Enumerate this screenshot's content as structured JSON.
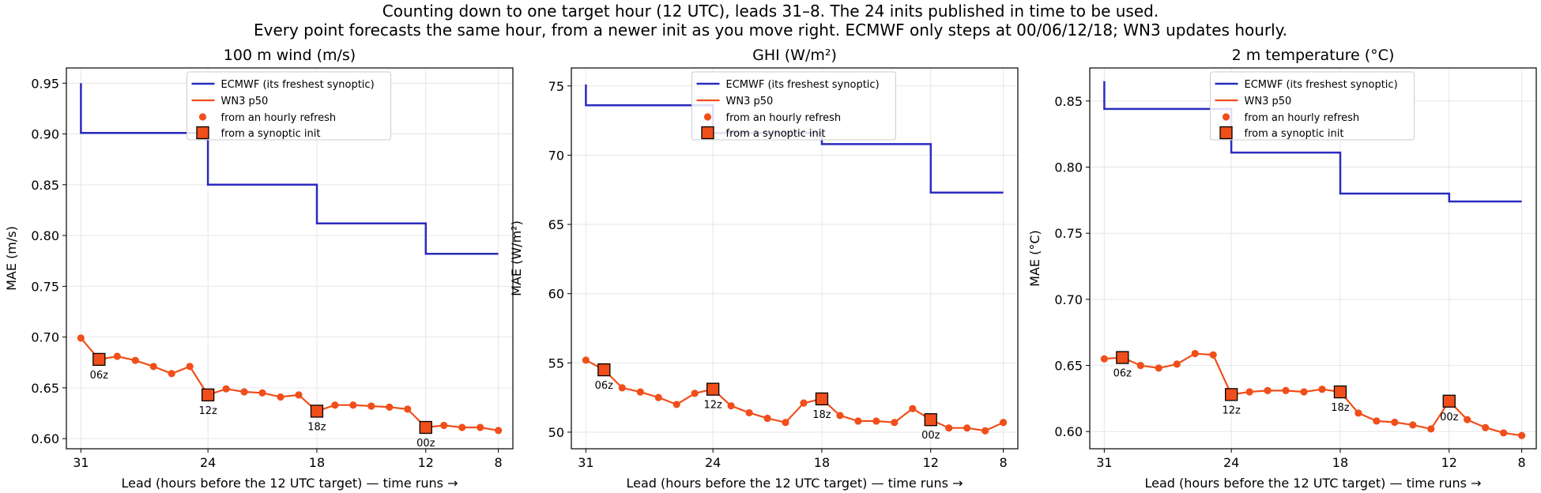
{
  "figure": {
    "title_line1": "Counting down to one target hour (12 UTC), leads 31–8. The 24 inits published in time to be used.",
    "title_line2": "Every point forecasts the same hour, from a newer init as you move right. ECMWF only steps at 00/06/12/18; WN3 updates hourly."
  },
  "legend": {
    "ecmwf": "ECMWF (its freshest synoptic)",
    "wn3": "WN3 p50",
    "hourly": "from an hourly refresh",
    "synoptic": "from a synoptic init"
  },
  "colors": {
    "ecmwf": "#2b2bbf",
    "wn3": "#f04e1a",
    "grid": "#e6e6e6"
  },
  "chart_data": [
    {
      "type": "line",
      "title": "100 m wind (m/s)",
      "xlabel": "Lead (hours before the 12 UTC target) — time runs →",
      "ylabel": "MAE (m/s)",
      "xlim": [
        31.8,
        7.2
      ],
      "ylim": [
        0.59,
        0.965
      ],
      "xticks": [
        31,
        24,
        18,
        12,
        8
      ],
      "yticks": [
        0.6,
        0.65,
        0.7,
        0.75,
        0.8,
        0.85,
        0.9,
        0.95
      ],
      "ytick_labels": [
        "0.60",
        "0.65",
        "0.70",
        "0.75",
        "0.80",
        "0.85",
        "0.90",
        "0.95"
      ],
      "grid": true,
      "legend_position": "upper center",
      "series": [
        {
          "name": "ECMWF (its freshest synoptic)",
          "style": "step",
          "steps": [
            [
              31,
              0.95
            ],
            [
              31,
              0.901
            ],
            [
              24,
              0.901
            ],
            [
              24,
              0.85
            ],
            [
              18,
              0.85
            ],
            [
              18,
              0.812
            ],
            [
              12,
              0.812
            ],
            [
              12,
              0.782
            ],
            [
              8,
              0.782
            ]
          ]
        },
        {
          "name": "WN3 p50",
          "x": [
            31,
            30,
            29,
            28,
            27,
            26,
            25,
            24,
            23,
            22,
            21,
            20,
            19,
            18,
            17,
            16,
            15,
            14,
            13,
            12,
            11,
            10,
            9,
            8
          ],
          "y": [
            0.699,
            0.678,
            0.681,
            0.677,
            0.671,
            0.664,
            0.671,
            0.643,
            0.649,
            0.646,
            0.645,
            0.641,
            0.643,
            0.627,
            0.633,
            0.633,
            0.632,
            0.631,
            0.629,
            0.611,
            0.613,
            0.611,
            0.611,
            0.608
          ],
          "synoptic": [
            {
              "x": 30,
              "label": "06z"
            },
            {
              "x": 24,
              "label": "12z"
            },
            {
              "x": 18,
              "label": "18z"
            },
            {
              "x": 12,
              "label": "00z"
            }
          ]
        }
      ]
    },
    {
      "type": "line",
      "title": "GHI (W/m²)",
      "xlabel": "Lead (hours before the 12 UTC target) — time runs →",
      "ylabel": "MAE (W/m²)",
      "xlim": [
        31.8,
        7.2
      ],
      "ylim": [
        48.8,
        76.3
      ],
      "xticks": [
        31,
        24,
        18,
        12,
        8
      ],
      "yticks": [
        50,
        55,
        60,
        65,
        70,
        75
      ],
      "ytick_labels": [
        "50",
        "55",
        "60",
        "65",
        "70",
        "75"
      ],
      "grid": true,
      "legend_position": "upper center",
      "series": [
        {
          "name": "ECMWF (its freshest synoptic)",
          "style": "step",
          "steps": [
            [
              31,
              75.1
            ],
            [
              31,
              73.6
            ],
            [
              24,
              73.6
            ],
            [
              24,
              71.6
            ],
            [
              18,
              71.6
            ],
            [
              18,
              70.8
            ],
            [
              12,
              70.8
            ],
            [
              12,
              67.3
            ],
            [
              8,
              67.3
            ]
          ]
        },
        {
          "name": "WN3 p50",
          "x": [
            31,
            30,
            29,
            28,
            27,
            26,
            25,
            24,
            23,
            22,
            21,
            20,
            19,
            18,
            17,
            16,
            15,
            14,
            13,
            12,
            11,
            10,
            9,
            8
          ],
          "y": [
            55.2,
            54.5,
            53.2,
            52.9,
            52.5,
            52.0,
            52.8,
            53.1,
            51.9,
            51.4,
            51.0,
            50.7,
            52.1,
            52.4,
            51.2,
            50.8,
            50.8,
            50.7,
            51.7,
            50.9,
            50.3,
            50.3,
            50.1,
            50.7
          ],
          "synoptic": [
            {
              "x": 30,
              "label": "06z"
            },
            {
              "x": 24,
              "label": "12z"
            },
            {
              "x": 18,
              "label": "18z"
            },
            {
              "x": 12,
              "label": "00z"
            }
          ]
        }
      ]
    },
    {
      "type": "line",
      "title": "2 m temperature (°C)",
      "xlabel": "Lead (hours before the 12 UTC target) — time runs →",
      "ylabel": "MAE (°C)",
      "xlim": [
        31.8,
        7.2
      ],
      "ylim": [
        0.587,
        0.875
      ],
      "xticks": [
        31,
        24,
        18,
        12,
        8
      ],
      "yticks": [
        0.6,
        0.65,
        0.7,
        0.75,
        0.8,
        0.85
      ],
      "ytick_labels": [
        "0.60",
        "0.65",
        "0.70",
        "0.75",
        "0.80",
        "0.85"
      ],
      "grid": true,
      "legend_position": "upper center",
      "series": [
        {
          "name": "ECMWF (its freshest synoptic)",
          "style": "step",
          "steps": [
            [
              31,
              0.865
            ],
            [
              31,
              0.844
            ],
            [
              24,
              0.844
            ],
            [
              24,
              0.811
            ],
            [
              18,
              0.811
            ],
            [
              18,
              0.78
            ],
            [
              12,
              0.78
            ],
            [
              12,
              0.774
            ],
            [
              8,
              0.774
            ]
          ]
        },
        {
          "name": "WN3 p50",
          "x": [
            31,
            30,
            29,
            28,
            27,
            26,
            25,
            24,
            23,
            22,
            21,
            20,
            19,
            18,
            17,
            16,
            15,
            14,
            13,
            12,
            11,
            10,
            9,
            8
          ],
          "y": [
            0.655,
            0.656,
            0.65,
            0.648,
            0.651,
            0.659,
            0.658,
            0.628,
            0.63,
            0.631,
            0.631,
            0.63,
            0.632,
            0.63,
            0.614,
            0.608,
            0.607,
            0.605,
            0.602,
            0.623,
            0.609,
            0.603,
            0.599,
            0.597
          ],
          "synoptic": [
            {
              "x": 30,
              "label": "06z"
            },
            {
              "x": 24,
              "label": "12z"
            },
            {
              "x": 18,
              "label": "18z"
            },
            {
              "x": 12,
              "label": "00z"
            }
          ]
        }
      ]
    }
  ]
}
